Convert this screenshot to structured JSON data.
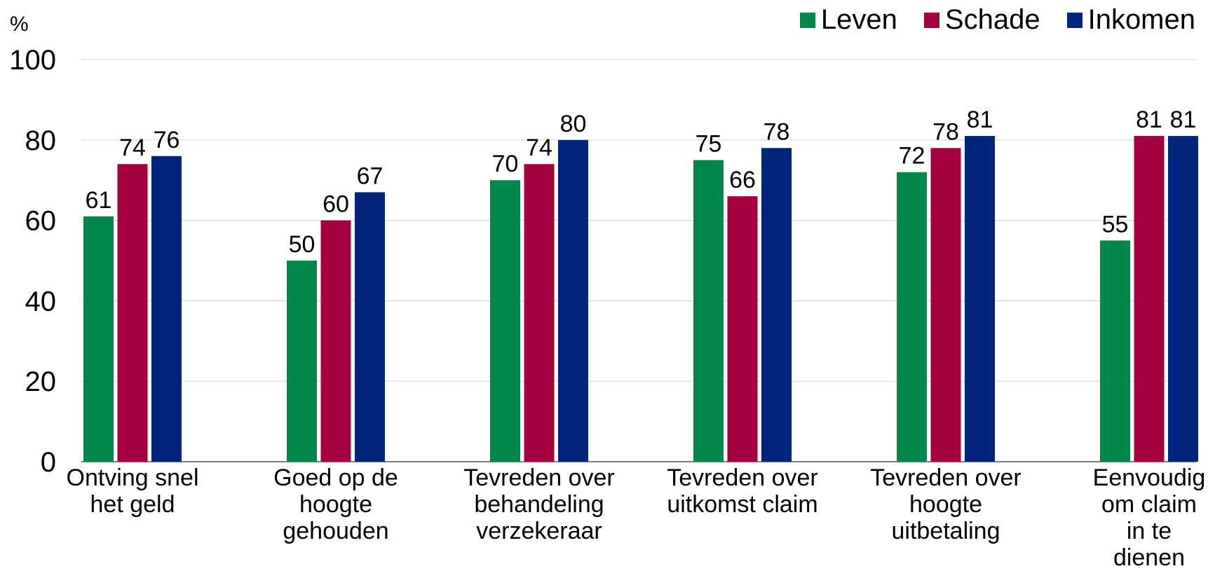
{
  "chart_data": {
    "type": "bar",
    "y_label": "%",
    "categories": [
      "Ontving snel het geld",
      "Goed op de hoogte gehouden",
      "Tevreden over behandeling verzekeraar",
      "Tevreden over uitkomst claim",
      "Tevreden over hoogte uitbetaling",
      "Eenvoudig om claim in te dienen"
    ],
    "series": [
      {
        "name": "Leven",
        "color": "#00884a",
        "values": [
          61,
          50,
          70,
          75,
          72,
          55
        ]
      },
      {
        "name": "Schade",
        "color": "#a5003f",
        "values": [
          74,
          60,
          74,
          66,
          78,
          81
        ]
      },
      {
        "name": "Inkomen",
        "color": "#00257a",
        "values": [
          76,
          67,
          80,
          78,
          81,
          81
        ]
      }
    ],
    "ylim": [
      0,
      100
    ],
    "yticks": [
      0,
      20,
      40,
      60,
      80,
      100
    ],
    "grid": true,
    "legend": "top-right"
  }
}
